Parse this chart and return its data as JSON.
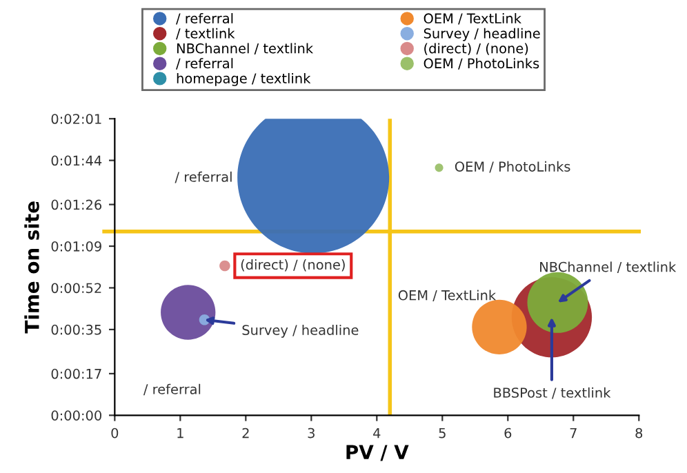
{
  "chart_data": {
    "type": "bubble",
    "xlabel": "PV / V",
    "ylabel": "Time on site",
    "xlim": [
      0,
      8
    ],
    "xticks": [
      0,
      1,
      2,
      3,
      4,
      5,
      6,
      7,
      8
    ],
    "ylim": [
      0,
      121
    ],
    "yticks": [
      {
        "value": 0,
        "label": "0:00:00"
      },
      {
        "value": 17,
        "label": "0:00:17"
      },
      {
        "value": 35,
        "label": "0:00:35"
      },
      {
        "value": 52,
        "label": "0:00:52"
      },
      {
        "value": 69,
        "label": "0:01:09"
      },
      {
        "value": 86,
        "label": "0:01:26"
      },
      {
        "value": 104,
        "label": "0:01:44"
      },
      {
        "value": 121,
        "label": "0:02:01"
      }
    ],
    "series": [
      {
        "name": "/ referral",
        "color": "#3a6eb5",
        "x": [
          3.03
        ],
        "values": [
          97
        ],
        "sizes": [
          1
        ]
      },
      {
        "name": "/ textlink",
        "color": "#a3282c",
        "x": [
          6.67
        ],
        "values": [
          40
        ],
        "sizes": [
          0.28
        ]
      },
      {
        "name": "NBChannel / textlink",
        "color": "#7cab3a",
        "x": [
          6.76
        ],
        "values": [
          46
        ],
        "sizes": [
          0.16
        ]
      },
      {
        "name": "/ referral",
        "color": "#6a4c9c",
        "x": [
          1.12
        ],
        "values": [
          42
        ],
        "sizes": [
          0.13
        ]
      },
      {
        "name": "homepage / textlink",
        "color": "#2e8fa8",
        "x": [
          null
        ],
        "values": [
          null
        ],
        "sizes": [
          null
        ]
      },
      {
        "name": "OEM / TextLink",
        "color": "#f0892e",
        "x": [
          5.87
        ],
        "values": [
          36
        ],
        "sizes": [
          0.13
        ]
      },
      {
        "name": "Survey / headline",
        "color": "#8aaee0",
        "x": [
          1.37
        ],
        "values": [
          39
        ],
        "sizes": [
          0.005
        ]
      },
      {
        "name": "(direct) / (none)",
        "color": "#d98a8a",
        "x": [
          1.68
        ],
        "values": [
          61
        ],
        "sizes": [
          0.005
        ]
      },
      {
        "name": "OEM / PhotoLinks",
        "color": "#9bc06a",
        "x": [
          4.95
        ],
        "values": [
          101
        ],
        "sizes": [
          0.003
        ]
      }
    ],
    "ref_lines": [
      {
        "axis": "x",
        "value": 4.2,
        "color": "#f5c518"
      },
      {
        "axis": "y",
        "value": 75,
        "color": "#f5c518"
      }
    ],
    "annotations": [
      "/ referral",
      {
        "text": "OEM / PhotoLinks",
        "x": 4.95,
        "y": 101
      },
      {
        "text": "(direct) / (none)",
        "x": 1.68,
        "y": 61
      },
      {
        "text": "Survey / headline",
        "x": 1.37,
        "y": 39
      },
      "/ referral",
      {
        "text": "OEM / TextLink",
        "x": 5.87,
        "y": 36
      },
      {
        "text": "NBChannel / textlink",
        "x": 6.76,
        "y": 46
      },
      {
        "text": "BBSPost / textlink",
        "x": 6.67,
        "y": 40
      }
    ],
    "legend": "top",
    "grid": false,
    "marker": "circle"
  }
}
